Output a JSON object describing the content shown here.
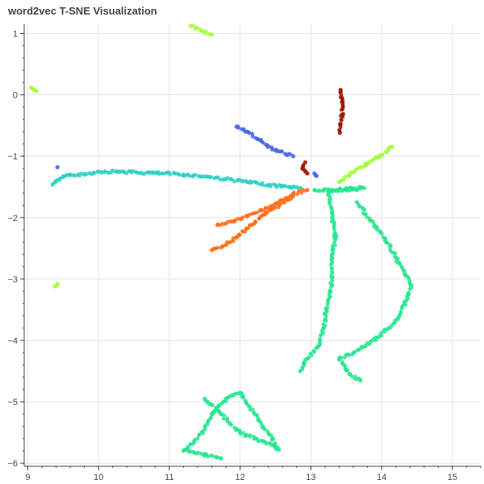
{
  "chart_data": {
    "type": "scatter",
    "title": "word2vec T-SNE Visualization",
    "xlabel": "",
    "ylabel": "",
    "xlim": [
      8.95,
      15.4
    ],
    "ylim": [
      -6.05,
      1.15
    ],
    "xticks": [
      9,
      10,
      11,
      12,
      13,
      14,
      15
    ],
    "yticks": [
      1,
      0,
      -1,
      -2,
      -3,
      -4,
      -5,
      -6
    ],
    "xtick_labels": [
      "9",
      "10",
      "11",
      "12",
      "13",
      "14",
      "15"
    ],
    "ytick_labels": [
      "1",
      "0",
      "−1",
      "−2",
      "−3",
      "−4",
      "−5",
      "−6"
    ],
    "grid": true,
    "legend": "none",
    "series": [
      {
        "color": "#9e1405",
        "points": [
          [
            13.42,
            0.08
          ],
          [
            13.44,
            -0.05
          ],
          [
            13.45,
            -0.18
          ],
          [
            13.44,
            -0.32
          ],
          [
            13.42,
            -0.48
          ],
          [
            13.41,
            -0.62
          ]
        ]
      },
      {
        "color": "#9e1405",
        "points": [
          [
            12.92,
            -1.1
          ],
          [
            12.88,
            -1.2
          ],
          [
            12.95,
            -1.28
          ]
        ]
      },
      {
        "color": "#4666e6",
        "points": [
          [
            11.95,
            -0.52
          ],
          [
            12.1,
            -0.6
          ],
          [
            12.25,
            -0.72
          ],
          [
            12.38,
            -0.82
          ],
          [
            12.55,
            -0.92
          ],
          [
            12.75,
            -1.0
          ]
        ]
      },
      {
        "color": "#4666e6",
        "points": [
          [
            13.05,
            -1.28
          ],
          [
            13.08,
            -1.32
          ],
          [
            9.42,
            -1.18
          ]
        ]
      },
      {
        "color": "#2bd0c4",
        "points": [
          [
            9.35,
            -1.46
          ],
          [
            9.45,
            -1.38
          ],
          [
            9.6,
            -1.3
          ],
          [
            9.8,
            -1.3
          ],
          [
            10.0,
            -1.25
          ],
          [
            10.3,
            -1.25
          ],
          [
            10.6,
            -1.27
          ],
          [
            10.9,
            -1.28
          ],
          [
            11.2,
            -1.3
          ],
          [
            11.5,
            -1.33
          ],
          [
            11.8,
            -1.37
          ],
          [
            12.1,
            -1.42
          ],
          [
            12.4,
            -1.47
          ],
          [
            12.7,
            -1.5
          ],
          [
            12.85,
            -1.52
          ]
        ]
      },
      {
        "color": "#ff6e1a",
        "points": [
          [
            11.68,
            -2.12
          ],
          [
            11.9,
            -2.06
          ],
          [
            12.1,
            -1.98
          ],
          [
            12.3,
            -1.88
          ],
          [
            12.55,
            -1.75
          ],
          [
            12.75,
            -1.62
          ],
          [
            12.95,
            -1.55
          ]
        ]
      },
      {
        "color": "#ff6e1a",
        "points": [
          [
            11.6,
            -2.53
          ],
          [
            11.75,
            -2.47
          ],
          [
            11.95,
            -2.32
          ],
          [
            12.15,
            -2.12
          ],
          [
            12.35,
            -1.95
          ],
          [
            12.55,
            -1.8
          ],
          [
            12.75,
            -1.65
          ]
        ]
      },
      {
        "color": "#28e690",
        "points": [
          [
            13.05,
            -1.55
          ],
          [
            13.35,
            -1.56
          ],
          [
            13.55,
            -1.55
          ],
          [
            13.75,
            -1.52
          ],
          [
            13.25,
            -1.55
          ],
          [
            13.27,
            -1.75
          ],
          [
            13.3,
            -2.0
          ],
          [
            13.35,
            -2.3
          ],
          [
            13.3,
            -2.6
          ],
          [
            13.3,
            -2.9
          ],
          [
            13.28,
            -3.2
          ],
          [
            13.22,
            -3.5
          ],
          [
            13.18,
            -3.8
          ],
          [
            13.1,
            -4.1
          ],
          [
            12.95,
            -4.3
          ],
          [
            12.85,
            -4.5
          ],
          [
            13.65,
            -1.75
          ],
          [
            13.85,
            -2.05
          ],
          [
            14.05,
            -2.35
          ],
          [
            14.2,
            -2.65
          ],
          [
            14.32,
            -2.9
          ],
          [
            14.42,
            -3.1
          ],
          [
            14.35,
            -3.35
          ],
          [
            14.25,
            -3.6
          ],
          [
            14.1,
            -3.8
          ],
          [
            13.95,
            -3.95
          ],
          [
            13.6,
            -4.2
          ],
          [
            13.4,
            -4.3
          ],
          [
            13.55,
            -4.55
          ],
          [
            13.7,
            -4.65
          ],
          [
            11.5,
            -4.95
          ],
          [
            11.7,
            -5.15
          ],
          [
            11.85,
            -5.35
          ],
          [
            12.0,
            -5.5
          ],
          [
            12.2,
            -5.6
          ],
          [
            12.45,
            -5.7
          ],
          [
            12.55,
            -5.78
          ],
          [
            12.0,
            -4.85
          ],
          [
            11.8,
            -4.95
          ],
          [
            11.6,
            -5.2
          ],
          [
            11.5,
            -5.45
          ],
          [
            11.35,
            -5.65
          ],
          [
            11.2,
            -5.8
          ],
          [
            11.73,
            -5.92
          ]
        ]
      },
      {
        "color": "#a4fc3c",
        "points": [
          [
            11.3,
            1.12
          ],
          [
            11.45,
            1.05
          ],
          [
            11.6,
            0.98
          ],
          [
            9.05,
            0.12
          ],
          [
            9.12,
            0.06
          ],
          [
            9.38,
            -3.12
          ],
          [
            9.42,
            -3.08
          ],
          [
            14.15,
            -0.85
          ],
          [
            14.0,
            -0.98
          ],
          [
            13.85,
            -1.08
          ],
          [
            13.7,
            -1.18
          ],
          [
            13.55,
            -1.3
          ],
          [
            13.4,
            -1.42
          ]
        ]
      }
    ]
  }
}
